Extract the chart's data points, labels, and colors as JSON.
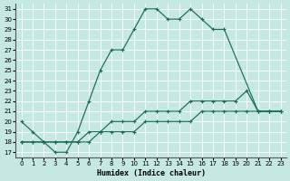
{
  "xlabel": "Humidex (Indice chaleur)",
  "bg_color": "#c5e8e3",
  "grid_color": "#b8d8d3",
  "line_color": "#1a6b5a",
  "xmin": 0,
  "xmax": 23,
  "ymin": 17,
  "ymax": 31,
  "curve1_x": [
    0,
    1,
    2,
    3,
    4,
    5,
    6,
    7,
    8,
    9,
    10,
    11,
    12,
    13,
    14,
    15,
    16,
    17,
    18,
    21,
    22,
    23
  ],
  "curve1_y": [
    20,
    19,
    18,
    17,
    17,
    19,
    22,
    25,
    27,
    27,
    29,
    31,
    31,
    30,
    30,
    31,
    30,
    29,
    29,
    21,
    21,
    21
  ],
  "curve2_x": [
    0,
    1,
    2,
    3,
    4,
    5,
    6,
    7,
    8,
    9,
    10,
    11,
    12,
    13,
    14,
    15,
    16,
    17,
    18,
    19,
    20,
    21,
    22,
    23
  ],
  "curve2_y": [
    18,
    18,
    18,
    18,
    18,
    18,
    19,
    19,
    20,
    20,
    20,
    21,
    21,
    21,
    21,
    22,
    22,
    22,
    22,
    22,
    23,
    21,
    21,
    21
  ],
  "curve3_x": [
    0,
    1,
    2,
    3,
    4,
    5,
    6,
    7,
    8,
    9,
    10,
    11,
    12,
    13,
    14,
    15,
    16,
    17,
    18,
    19,
    20,
    21,
    22,
    23
  ],
  "curve3_y": [
    18,
    18,
    18,
    18,
    18,
    18,
    18,
    19,
    19,
    19,
    19,
    20,
    20,
    20,
    20,
    20,
    21,
    21,
    21,
    21,
    21,
    21,
    21,
    21
  ]
}
